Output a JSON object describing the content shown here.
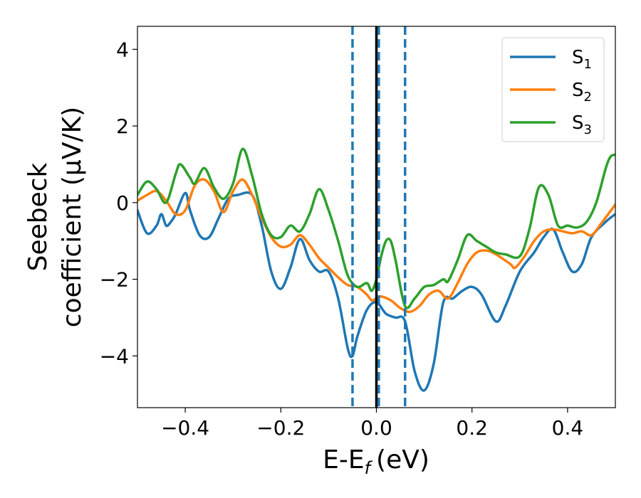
{
  "chart_data": {
    "type": "line",
    "title": "",
    "xlabel": "E-E",
    "xlabel_subscript": "f",
    "xlabel_unit": "(eV)",
    "ylabel_line1": "Seebeck",
    "ylabel_line2": "coefficient  (μV/K)",
    "xlim": [
      -0.5,
      0.5
    ],
    "ylim": [
      -5.35,
      4.6
    ],
    "xticks": [
      -0.4,
      -0.2,
      0.0,
      0.2,
      0.4
    ],
    "xtick_labels": [
      "−0.4",
      "−0.2",
      "0.0",
      "0.2",
      "0.4"
    ],
    "yticks": [
      -4,
      -2,
      0,
      2,
      4
    ],
    "ytick_labels": [
      "−4",
      "−2",
      "0",
      "2",
      "4"
    ],
    "grid": false,
    "legend_position": "top-right",
    "vertical_lines": [
      {
        "x": 0.0,
        "style": "solid",
        "color": "#000000"
      },
      {
        "x": -0.05,
        "style": "dashed",
        "color": "#1f77b4"
      },
      {
        "x": 0.005,
        "style": "dashed",
        "color": "#1f77b4"
      },
      {
        "x": 0.06,
        "style": "dashed",
        "color": "#1f77b4"
      }
    ],
    "series": [
      {
        "name": "S",
        "name_subscript": "1",
        "color": "#1f77b4",
        "points": [
          [
            -0.5,
            -0.2
          ],
          [
            -0.48,
            -0.8
          ],
          [
            -0.46,
            -0.6
          ],
          [
            -0.45,
            -0.3
          ],
          [
            -0.44,
            -0.6
          ],
          [
            -0.43,
            -0.5
          ],
          [
            -0.42,
            -0.3
          ],
          [
            -0.4,
            0.25
          ],
          [
            -0.39,
            -0.2
          ],
          [
            -0.37,
            -0.85
          ],
          [
            -0.35,
            -0.9
          ],
          [
            -0.33,
            -0.4
          ],
          [
            -0.31,
            0.1
          ],
          [
            -0.29,
            0.2
          ],
          [
            -0.26,
            0.2
          ],
          [
            -0.24,
            -0.6
          ],
          [
            -0.22,
            -1.8
          ],
          [
            -0.2,
            -2.25
          ],
          [
            -0.18,
            -1.7
          ],
          [
            -0.16,
            -0.95
          ],
          [
            -0.14,
            -1.5
          ],
          [
            -0.12,
            -1.8
          ],
          [
            -0.1,
            -1.8
          ],
          [
            -0.08,
            -2.5
          ],
          [
            -0.06,
            -3.8
          ],
          [
            -0.05,
            -4.0
          ],
          [
            -0.04,
            -3.5
          ],
          [
            -0.02,
            -2.8
          ],
          [
            0.0,
            -2.6
          ],
          [
            0.02,
            -2.9
          ],
          [
            0.04,
            -3.0
          ],
          [
            0.06,
            -3.1
          ],
          [
            0.08,
            -4.4
          ],
          [
            0.1,
            -4.9
          ],
          [
            0.12,
            -4.2
          ],
          [
            0.14,
            -2.6
          ],
          [
            0.16,
            -2.5
          ],
          [
            0.18,
            -2.3
          ],
          [
            0.2,
            -2.2
          ],
          [
            0.22,
            -2.4
          ],
          [
            0.25,
            -3.1
          ],
          [
            0.27,
            -2.7
          ],
          [
            0.3,
            -1.8
          ],
          [
            0.33,
            -1.3
          ],
          [
            0.35,
            -0.9
          ],
          [
            0.37,
            -0.7
          ],
          [
            0.39,
            -1.3
          ],
          [
            0.41,
            -1.8
          ],
          [
            0.43,
            -1.6
          ],
          [
            0.45,
            -0.9
          ],
          [
            0.48,
            -0.5
          ],
          [
            0.5,
            -0.3
          ]
        ]
      },
      {
        "name": "S",
        "name_subscript": "2",
        "color": "#ff7f0e",
        "points": [
          [
            -0.5,
            0.05
          ],
          [
            -0.48,
            0.2
          ],
          [
            -0.46,
            0.3
          ],
          [
            -0.44,
            0.05
          ],
          [
            -0.42,
            -0.3
          ],
          [
            -0.4,
            -0.2
          ],
          [
            -0.38,
            0.45
          ],
          [
            -0.36,
            0.6
          ],
          [
            -0.34,
            0.3
          ],
          [
            -0.32,
            -0.25
          ],
          [
            -0.3,
            0.3
          ],
          [
            -0.28,
            0.6
          ],
          [
            -0.26,
            0.2
          ],
          [
            -0.24,
            -0.4
          ],
          [
            -0.22,
            -0.9
          ],
          [
            -0.2,
            -1.15
          ],
          [
            -0.18,
            -1.1
          ],
          [
            -0.16,
            -0.85
          ],
          [
            -0.14,
            -1.1
          ],
          [
            -0.12,
            -1.45
          ],
          [
            -0.1,
            -1.7
          ],
          [
            -0.08,
            -1.95
          ],
          [
            -0.06,
            -2.15
          ],
          [
            -0.04,
            -2.2
          ],
          [
            -0.02,
            -2.4
          ],
          [
            -0.01,
            -2.55
          ],
          [
            0.0,
            -2.5
          ],
          [
            0.01,
            -2.45
          ],
          [
            0.03,
            -2.55
          ],
          [
            0.05,
            -2.75
          ],
          [
            0.07,
            -2.85
          ],
          [
            0.09,
            -2.7
          ],
          [
            0.11,
            -2.4
          ],
          [
            0.13,
            -2.3
          ],
          [
            0.15,
            -2.5
          ],
          [
            0.17,
            -2.1
          ],
          [
            0.19,
            -1.6
          ],
          [
            0.21,
            -1.3
          ],
          [
            0.23,
            -1.25
          ],
          [
            0.25,
            -1.35
          ],
          [
            0.28,
            -1.6
          ],
          [
            0.29,
            -1.7
          ],
          [
            0.31,
            -1.4
          ],
          [
            0.33,
            -1.0
          ],
          [
            0.35,
            -0.75
          ],
          [
            0.37,
            -0.7
          ],
          [
            0.39,
            -0.75
          ],
          [
            0.41,
            -0.8
          ],
          [
            0.43,
            -0.75
          ],
          [
            0.45,
            -0.85
          ],
          [
            0.47,
            -0.55
          ],
          [
            0.5,
            -0.05
          ]
        ]
      },
      {
        "name": "S",
        "name_subscript": "3",
        "color": "#2ca02c",
        "points": [
          [
            -0.5,
            0.2
          ],
          [
            -0.48,
            0.55
          ],
          [
            -0.46,
            0.35
          ],
          [
            -0.44,
            0.0
          ],
          [
            -0.42,
            0.75
          ],
          [
            -0.41,
            1.0
          ],
          [
            -0.39,
            0.65
          ],
          [
            -0.38,
            0.5
          ],
          [
            -0.36,
            0.9
          ],
          [
            -0.34,
            0.4
          ],
          [
            -0.32,
            0.1
          ],
          [
            -0.3,
            0.5
          ],
          [
            -0.28,
            1.4
          ],
          [
            -0.26,
            0.7
          ],
          [
            -0.24,
            -0.3
          ],
          [
            -0.22,
            -0.85
          ],
          [
            -0.2,
            -0.9
          ],
          [
            -0.18,
            -0.6
          ],
          [
            -0.16,
            -0.75
          ],
          [
            -0.14,
            -0.3
          ],
          [
            -0.12,
            0.35
          ],
          [
            -0.1,
            -0.2
          ],
          [
            -0.08,
            -1.0
          ],
          [
            -0.06,
            -1.9
          ],
          [
            -0.04,
            -2.2
          ],
          [
            -0.02,
            -2.1
          ],
          [
            -0.01,
            -2.3
          ],
          [
            0.0,
            -2.0
          ],
          [
            0.01,
            -1.4
          ],
          [
            0.02,
            -1.0
          ],
          [
            0.03,
            -1.0
          ],
          [
            0.04,
            -1.5
          ],
          [
            0.06,
            -2.7
          ],
          [
            0.08,
            -2.5
          ],
          [
            0.1,
            -2.2
          ],
          [
            0.12,
            -2.15
          ],
          [
            0.14,
            -2.0
          ],
          [
            0.15,
            -2.05
          ],
          [
            0.17,
            -1.5
          ],
          [
            0.19,
            -0.85
          ],
          [
            0.21,
            -1.0
          ],
          [
            0.23,
            -1.15
          ],
          [
            0.25,
            -1.3
          ],
          [
            0.27,
            -1.35
          ],
          [
            0.3,
            -1.4
          ],
          [
            0.32,
            -0.7
          ],
          [
            0.34,
            0.4
          ],
          [
            0.36,
            0.2
          ],
          [
            0.38,
            -0.6
          ],
          [
            0.4,
            -0.6
          ],
          [
            0.42,
            -0.65
          ],
          [
            0.44,
            -0.5
          ],
          [
            0.46,
            0.0
          ],
          [
            0.48,
            0.9
          ],
          [
            0.49,
            1.2
          ],
          [
            0.5,
            1.25
          ]
        ]
      }
    ]
  }
}
